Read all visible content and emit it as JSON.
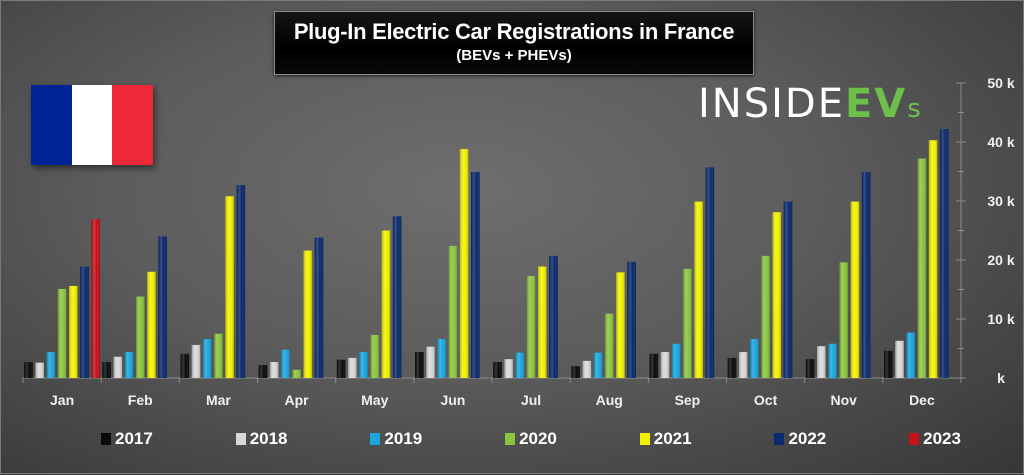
{
  "chart_data": {
    "type": "bar",
    "title": "Plug-In Electric Car Registrations in France",
    "subtitle": "(BEVs + PHEVs)",
    "xlabel": "",
    "ylabel": "",
    "ylim": [
      0,
      50000
    ],
    "y_ticks": [
      0,
      10000,
      20000,
      30000,
      40000,
      50000
    ],
    "y_tick_labels": [
      "k",
      "10 k",
      "20 k",
      "30 k",
      "40 k",
      "50 k"
    ],
    "y_axis_side": "right",
    "grid": false,
    "legend_position": "bottom",
    "categories": [
      "Jan",
      "Feb",
      "Mar",
      "Apr",
      "May",
      "Jun",
      "Jul",
      "Aug",
      "Sep",
      "Oct",
      "Nov",
      "Dec"
    ],
    "series": [
      {
        "name": "2017",
        "color": "#0a0a0a",
        "values": [
          2700,
          2700,
          4100,
          2200,
          3100,
          4400,
          2700,
          2000,
          4100,
          3400,
          3200,
          4600
        ]
      },
      {
        "name": "2018",
        "color": "#d8d8d8",
        "values": [
          2600,
          3600,
          5600,
          2700,
          3400,
          5300,
          3200,
          2900,
          4400,
          4400,
          5400,
          6300
        ]
      },
      {
        "name": "2019",
        "color": "#1aa7e0",
        "values": [
          4400,
          4400,
          6600,
          4800,
          4400,
          6600,
          4300,
          4300,
          5800,
          6600,
          5800,
          7700
        ]
      },
      {
        "name": "2020",
        "color": "#8cc63f",
        "values": [
          15100,
          13800,
          7500,
          1400,
          7300,
          22400,
          17300,
          10900,
          18500,
          20700,
          19600,
          37200
        ]
      },
      {
        "name": "2021",
        "color": "#f2f200",
        "values": [
          15600,
          18000,
          30800,
          21600,
          25000,
          38800,
          18900,
          17900,
          29900,
          28100,
          29900,
          40300
        ]
      },
      {
        "name": "2022",
        "color": "#0a2a6e",
        "values": [
          18900,
          24000,
          32700,
          23800,
          27400,
          34900,
          20700,
          19700,
          35700,
          29900,
          34900,
          42200
        ]
      },
      {
        "name": "2023",
        "color": "#c8101a",
        "values": [
          26900,
          null,
          null,
          null,
          null,
          null,
          null,
          null,
          null,
          null,
          null,
          null
        ]
      }
    ]
  },
  "branding": {
    "logo_part1": "INSIDE",
    "logo_part2": "EV",
    "logo_part3": "s",
    "flag": "france-flag",
    "flag_colors": [
      "#002395",
      "#ffffff",
      "#ed2939"
    ]
  }
}
